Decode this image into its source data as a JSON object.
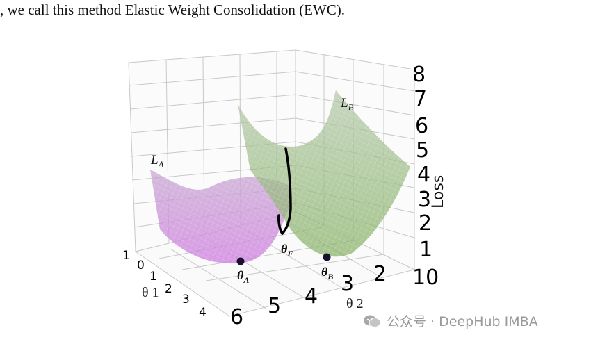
{
  "caption": ", we call this method Elastic Weight Consolidation (EWC).",
  "figure": {
    "z_ticks": [
      "8",
      "7",
      "6",
      "5",
      "4",
      "3",
      "2",
      "1",
      "10"
    ],
    "z_label": "Loss",
    "theta2_ticks": [
      "6",
      "5",
      "4",
      "3",
      "2"
    ],
    "theta2_label": "θ 2",
    "theta1_ticks": [
      "1",
      "0",
      "1",
      "2",
      "3",
      "4"
    ],
    "theta1_label": "θ 1",
    "curve_labels": {
      "la": "L",
      "la_sub": "A",
      "lb": "L",
      "lb_sub": "B"
    },
    "point_labels": {
      "ta": "θ",
      "ta_sub": "A",
      "tb": "θ",
      "tb_sub": "B",
      "tf": "θ",
      "tf_sub": "F"
    },
    "colors": {
      "surface_a": "#b77fc4",
      "surface_b": "#9cbf86",
      "grid": "#c8c8c8",
      "path": "#000000"
    }
  },
  "watermark": "公众号 · DeepHub IMBA"
}
